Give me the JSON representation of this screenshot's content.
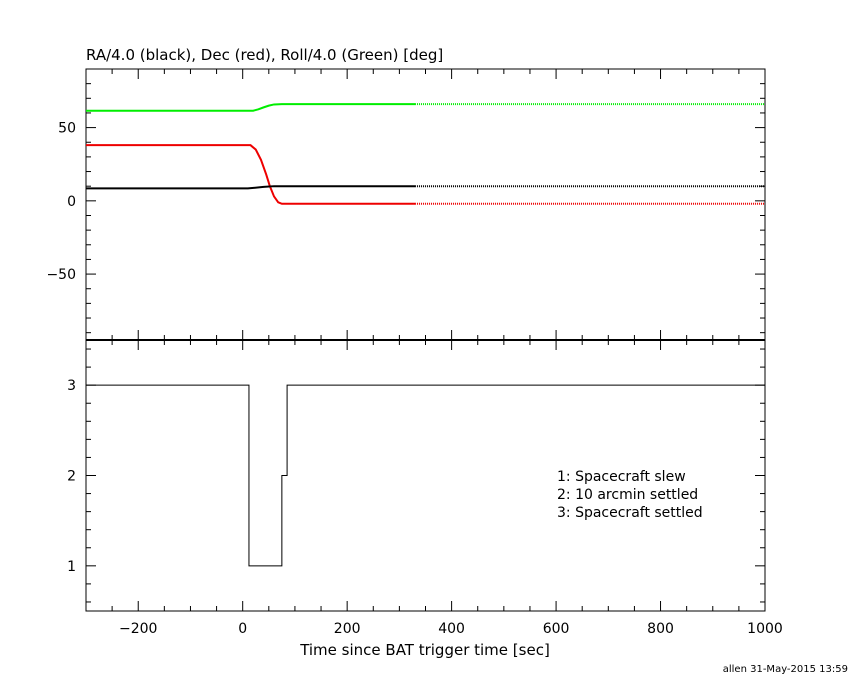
{
  "footer": "allen 31-May-2015 13:59",
  "chart_data": [
    {
      "type": "line",
      "title": "RA/4.0 (black), Dec (red), Roll/4.0 (Green) [deg]",
      "xlabel": "",
      "ylabel": "",
      "xlim": [
        -300,
        1000
      ],
      "ylim": [
        -95,
        90
      ],
      "ytick_labels": [
        "−50",
        "0",
        "50"
      ],
      "yticks": [
        -50,
        0,
        50
      ],
      "grid": false,
      "series": [
        {
          "color": "#00ee00",
          "x": [
            -300,
            20,
            30,
            40,
            50,
            60,
            75,
            330,
            1000
          ],
          "y": [
            61.5,
            61.5,
            62.5,
            63.8,
            65,
            65.8,
            66,
            66,
            66
          ],
          "dotted_after": 330
        },
        {
          "color": "#ee0000",
          "x": [
            -300,
            15,
            25,
            35,
            45,
            52,
            60,
            68,
            75,
            90,
            330,
            1000
          ],
          "y": [
            38,
            38,
            35,
            28,
            18,
            10,
            3,
            -1,
            -2,
            -2,
            -2,
            -2
          ],
          "dotted_after": 330
        },
        {
          "color": "#000000",
          "x": [
            -300,
            10,
            40,
            60,
            330,
            1000
          ],
          "y": [
            8.5,
            8.5,
            9.5,
            10,
            10,
            10
          ],
          "dotted_after": 330
        }
      ]
    },
    {
      "type": "line",
      "step": true,
      "xlabel": "Time since BAT trigger time [sec]",
      "ylabel": "",
      "xlim": [
        -300,
        1000
      ],
      "ylim": [
        0.5,
        3.5
      ],
      "yticks": [
        1,
        2,
        3
      ],
      "xticks": [
        -200,
        0,
        200,
        400,
        600,
        800,
        1000
      ],
      "xtick_labels": [
        "−200",
        "0",
        "200",
        "400",
        "600",
        "800",
        "1000"
      ],
      "ytick_labels": [
        "1",
        "2",
        "3"
      ],
      "series": [
        {
          "color": "#000000",
          "x": [
            -300,
            12,
            12,
            75,
            75,
            85,
            85,
            1000
          ],
          "y": [
            3,
            3,
            1,
            1,
            2,
            2,
            3,
            3
          ]
        }
      ],
      "annotations": [
        "1: Spacecraft slew",
        "2: 10 arcmin settled",
        "3: Spacecraft settled"
      ]
    }
  ]
}
